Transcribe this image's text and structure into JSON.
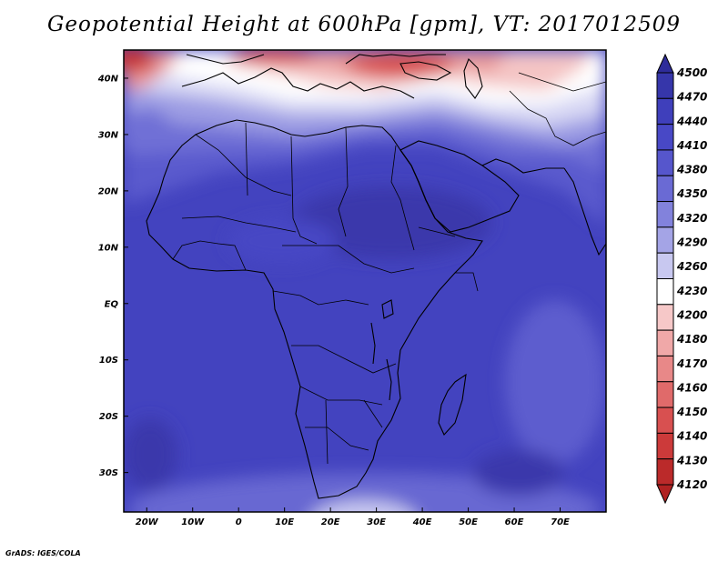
{
  "title": "Geopotential Height at 600hPa [gpm], VT: 2017012509",
  "footer": "GrADS: IGES/COLA",
  "map": {
    "lon_range": [
      -25,
      80
    ],
    "lat_range": [
      -37,
      45
    ],
    "x_ticks": [
      {
        "lon": -20,
        "label": "20W"
      },
      {
        "lon": -10,
        "label": "10W"
      },
      {
        "lon": 0,
        "label": "0"
      },
      {
        "lon": 10,
        "label": "10E"
      },
      {
        "lon": 20,
        "label": "20E"
      },
      {
        "lon": 30,
        "label": "30E"
      },
      {
        "lon": 40,
        "label": "40E"
      },
      {
        "lon": 50,
        "label": "50E"
      },
      {
        "lon": 60,
        "label": "60E"
      },
      {
        "lon": 70,
        "label": "70E"
      }
    ],
    "y_ticks": [
      {
        "lat": 40,
        "label": "40N"
      },
      {
        "lat": 30,
        "label": "30N"
      },
      {
        "lat": 20,
        "label": "20N"
      },
      {
        "lat": 10,
        "label": "10N"
      },
      {
        "lat": 0,
        "label": "EQ"
      },
      {
        "lat": -10,
        "label": "10S"
      },
      {
        "lat": -20,
        "label": "20S"
      },
      {
        "lat": -30,
        "label": "30S"
      }
    ]
  },
  "colorbar": {
    "levels": [
      "4500",
      "4470",
      "4440",
      "4410",
      "4380",
      "4350",
      "4320",
      "4290",
      "4260",
      "4230",
      "4200",
      "4180",
      "4170",
      "4160",
      "4150",
      "4140",
      "4130",
      "4120"
    ],
    "colors": [
      "#2e2c9a",
      "#3636aa",
      "#3f3fbb",
      "#4848c6",
      "#5656cc",
      "#6a6ad4",
      "#8282dc",
      "#a4a4e6",
      "#c8c8f0",
      "#ffffff",
      "#f6c8c8",
      "#f0a8a8",
      "#e88888",
      "#e06a6a",
      "#d85050",
      "#cc3a3a",
      "#bb2a2a",
      "#b02222"
    ]
  }
}
